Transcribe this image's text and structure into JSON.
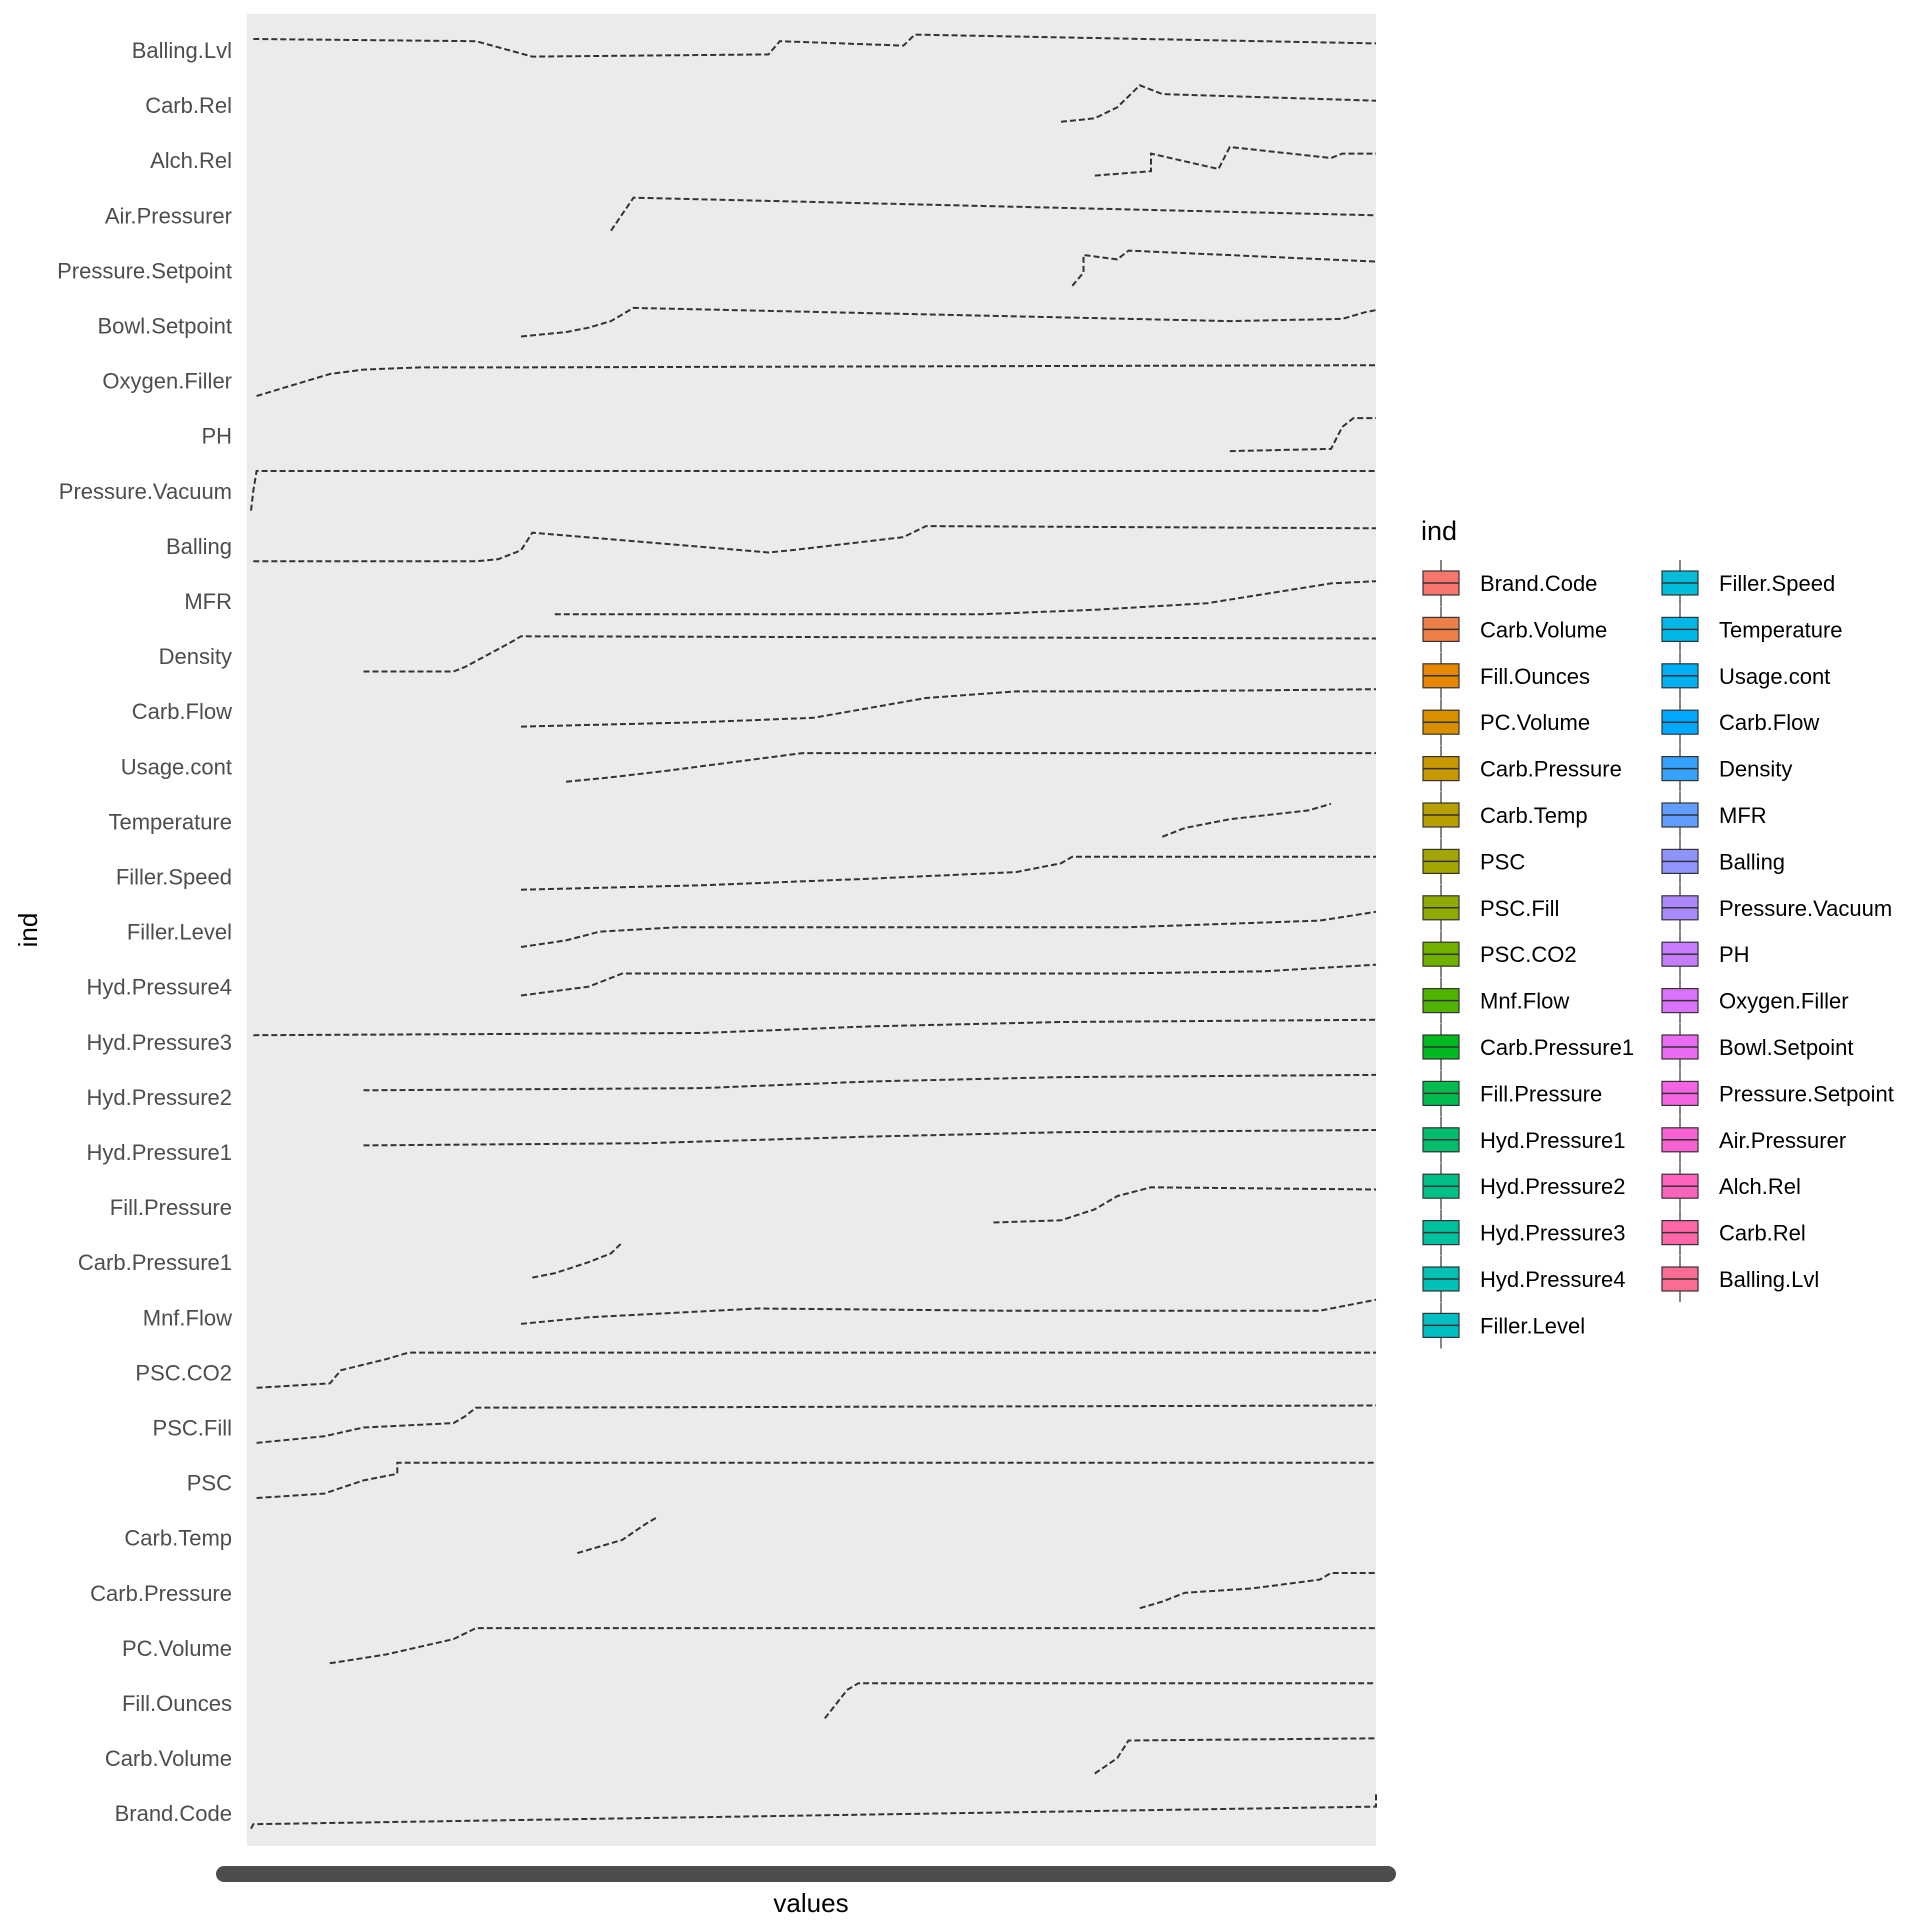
{
  "chart_data": {
    "type": "boxplot",
    "orientation": "horizontal",
    "xlabel": "values",
    "ylabel": "ind",
    "legend": {
      "title": "ind",
      "placement": "right",
      "columns": 2
    },
    "grid": false,
    "panel_background": "#ebebeb",
    "mark_color": "#333333",
    "x_tick_labels": "overplotted (illegible)",
    "categories": [
      "Brand.Code",
      "Carb.Volume",
      "Fill.Ounces",
      "PC.Volume",
      "Carb.Pressure",
      "Carb.Temp",
      "PSC",
      "PSC.Fill",
      "PSC.CO2",
      "Mnf.Flow",
      "Carb.Pressure1",
      "Fill.Pressure",
      "Hyd.Pressure1",
      "Hyd.Pressure2",
      "Hyd.Pressure3",
      "Hyd.Pressure4",
      "Filler.Level",
      "Filler.Speed",
      "Temperature",
      "Usage.cont",
      "Carb.Flow",
      "Density",
      "MFR",
      "Balling",
      "Pressure.Vacuum",
      "PH",
      "Oxygen.Filler",
      "Bowl.Setpoint",
      "Pressure.Setpoint",
      "Air.Pressurer",
      "Alch.Rel",
      "Carb.Rel",
      "Balling.Lvl"
    ],
    "colors": [
      "#F8766D",
      "#EF7F49",
      "#E58700",
      "#D89000",
      "#C99800",
      "#B79F00",
      "#A3A500",
      "#8DAB00",
      "#72B000",
      "#4EB400",
      "#00B81F",
      "#00BB4E",
      "#00BE6C",
      "#00C087",
      "#00C19F",
      "#00C1B5",
      "#00BFC4",
      "#00BCD8",
      "#00B7E9",
      "#00B0F6",
      "#00A9FF",
      "#35A2FF",
      "#619CFF",
      "#8F94FF",
      "#AC88FF",
      "#C77CFF",
      "#DB72FB",
      "#EA6AF1",
      "#F564E3",
      "#FC61D3",
      "#FF62BC",
      "#FF66A8",
      "#FC6C92"
    ],
    "point_traces": [
      {
        "name": "Balling.Lvl",
        "segs": [
          [
            0.002,
            0.25
          ],
          [
            0.2,
            0.3
          ],
          [
            0.25,
            0.65
          ],
          [
            0.46,
            0.6
          ],
          [
            0.47,
            0.3
          ],
          [
            0.58,
            0.4
          ],
          [
            0.59,
            0.15
          ],
          [
            1.0,
            0.35
          ]
        ]
      },
      {
        "name": "Carb.Rel",
        "segs": [
          [
            0.72,
            0.88
          ],
          [
            0.75,
            0.8
          ],
          [
            0.77,
            0.55
          ],
          [
            0.79,
            0.05
          ],
          [
            0.81,
            0.25
          ],
          [
            1.0,
            0.4
          ]
        ]
      },
      {
        "name": "Alch.Rel",
        "segs": [
          [
            0.75,
            0.85
          ],
          [
            0.8,
            0.75
          ],
          [
            0.8,
            0.35
          ],
          [
            0.86,
            0.7
          ],
          [
            0.87,
            0.2
          ],
          [
            0.96,
            0.45
          ],
          [
            0.97,
            0.35
          ],
          [
            1.0,
            0.35
          ]
        ]
      },
      {
        "name": "Air.Pressurer",
        "segs": [
          [
            0.32,
            0.85
          ],
          [
            0.34,
            0.1
          ],
          [
            1.0,
            0.5
          ]
        ]
      },
      {
        "name": "Pressure.Setpoint",
        "segs": [
          [
            0.73,
            0.85
          ],
          [
            0.74,
            0.55
          ],
          [
            0.74,
            0.15
          ],
          [
            0.77,
            0.25
          ],
          [
            0.78,
            0.05
          ],
          [
            1.0,
            0.3
          ]
        ]
      },
      {
        "name": "Bowl.Setpoint",
        "segs": [
          [
            0.24,
            0.75
          ],
          [
            0.26,
            0.7
          ],
          [
            0.28,
            0.65
          ],
          [
            0.3,
            0.55
          ],
          [
            0.32,
            0.4
          ],
          [
            0.34,
            0.1
          ],
          [
            0.87,
            0.4
          ],
          [
            0.97,
            0.35
          ],
          [
            0.99,
            0.2
          ],
          [
            1.0,
            0.15
          ]
        ]
      },
      {
        "name": "Oxygen.Filler",
        "segs": [
          [
            0.005,
            0.85
          ],
          [
            0.07,
            0.35
          ],
          [
            0.1,
            0.25
          ],
          [
            0.15,
            0.2
          ],
          [
            0.22,
            0.2
          ],
          [
            1.0,
            0.15
          ]
        ]
      },
      {
        "name": "PH",
        "segs": [
          [
            0.87,
            0.85
          ],
          [
            0.96,
            0.8
          ],
          [
            0.97,
            0.3
          ],
          [
            0.98,
            0.1
          ],
          [
            1.0,
            0.1
          ]
        ]
      },
      {
        "name": "Pressure.Vacuum",
        "segs": [
          [
            0.0,
            0.95
          ],
          [
            0.002,
            0.5
          ],
          [
            0.005,
            0.05
          ],
          [
            1.0,
            0.05
          ]
        ]
      },
      {
        "name": "Balling",
        "segs": [
          [
            0.002,
            0.85
          ],
          [
            0.2,
            0.85
          ],
          [
            0.22,
            0.8
          ],
          [
            0.24,
            0.6
          ],
          [
            0.25,
            0.2
          ],
          [
            0.46,
            0.65
          ],
          [
            0.48,
            0.6
          ],
          [
            0.58,
            0.3
          ],
          [
            0.6,
            0.05
          ],
          [
            1.0,
            0.1
          ]
        ]
      },
      {
        "name": "MFR",
        "segs": [
          [
            0.27,
            0.8
          ],
          [
            0.65,
            0.8
          ],
          [
            0.75,
            0.7
          ],
          [
            0.85,
            0.55
          ],
          [
            0.96,
            0.1
          ],
          [
            1.0,
            0.05
          ]
        ]
      },
      {
        "name": "Density",
        "segs": [
          [
            0.1,
            0.85
          ],
          [
            0.18,
            0.85
          ],
          [
            0.19,
            0.75
          ],
          [
            0.23,
            0.2
          ],
          [
            0.24,
            0.05
          ],
          [
            1.0,
            0.1
          ]
        ]
      },
      {
        "name": "Carb.Flow",
        "segs": [
          [
            0.24,
            0.85
          ],
          [
            0.4,
            0.75
          ],
          [
            0.5,
            0.65
          ],
          [
            0.6,
            0.2
          ],
          [
            0.68,
            0.05
          ],
          [
            0.8,
            0.05
          ],
          [
            1.0,
            0.0
          ]
        ]
      },
      {
        "name": "Usage.cont",
        "segs": [
          [
            0.28,
            0.85
          ],
          [
            0.32,
            0.75
          ],
          [
            0.37,
            0.6
          ],
          [
            0.43,
            0.4
          ],
          [
            0.49,
            0.2
          ],
          [
            1.0,
            0.2
          ]
        ]
      },
      {
        "name": "Temperature",
        "segs": [
          [
            0.81,
            0.85
          ],
          [
            0.83,
            0.65
          ],
          [
            0.87,
            0.45
          ],
          [
            0.94,
            0.25
          ],
          [
            0.96,
            0.1
          ]
        ]
      },
      {
        "name": "Filler.Speed",
        "segs": [
          [
            0.24,
            0.8
          ],
          [
            0.4,
            0.7
          ],
          [
            0.55,
            0.55
          ],
          [
            0.68,
            0.4
          ],
          [
            0.72,
            0.2
          ],
          [
            0.73,
            0.05
          ],
          [
            1.0,
            0.05
          ]
        ]
      },
      {
        "name": "Filler.Level",
        "segs": [
          [
            0.24,
            0.85
          ],
          [
            0.28,
            0.7
          ],
          [
            0.31,
            0.5
          ],
          [
            0.38,
            0.4
          ],
          [
            0.78,
            0.4
          ],
          [
            0.95,
            0.25
          ],
          [
            1.0,
            0.05
          ]
        ]
      },
      {
        "name": "Hyd.Pressure4",
        "segs": [
          [
            0.24,
            0.7
          ],
          [
            0.3,
            0.5
          ],
          [
            0.33,
            0.2
          ],
          [
            0.77,
            0.2
          ],
          [
            0.9,
            0.15
          ],
          [
            1.0,
            0.0
          ]
        ]
      },
      {
        "name": "Hyd.Pressure3",
        "segs": [
          [
            0.002,
            0.35
          ],
          [
            0.4,
            0.3
          ],
          [
            0.55,
            0.15
          ],
          [
            0.72,
            0.05
          ],
          [
            1.0,
            0.0
          ]
        ]
      },
      {
        "name": "Hyd.Pressure2",
        "segs": [
          [
            0.1,
            0.35
          ],
          [
            0.4,
            0.3
          ],
          [
            0.55,
            0.15
          ],
          [
            0.72,
            0.05
          ],
          [
            1.0,
            0.0
          ]
        ]
      },
      {
        "name": "Hyd.Pressure1",
        "segs": [
          [
            0.1,
            0.35
          ],
          [
            0.35,
            0.3
          ],
          [
            0.55,
            0.15
          ],
          [
            0.72,
            0.05
          ],
          [
            1.0,
            0.0
          ]
        ]
      },
      {
        "name": "Fill.Pressure",
        "segs": [
          [
            0.66,
            0.85
          ],
          [
            0.72,
            0.8
          ],
          [
            0.75,
            0.55
          ],
          [
            0.77,
            0.25
          ],
          [
            0.8,
            0.05
          ],
          [
            1.0,
            0.1
          ]
        ]
      },
      {
        "name": "Carb.Pressure1",
        "segs": [
          [
            0.25,
            0.85
          ],
          [
            0.27,
            0.75
          ],
          [
            0.3,
            0.5
          ],
          [
            0.32,
            0.3
          ],
          [
            0.33,
            0.05
          ]
        ]
      },
      {
        "name": "Mnf.Flow",
        "segs": [
          [
            0.24,
            0.65
          ],
          [
            0.3,
            0.5
          ],
          [
            0.45,
            0.3
          ],
          [
            0.67,
            0.35
          ],
          [
            0.95,
            0.35
          ],
          [
            1.0,
            0.1
          ]
        ]
      },
      {
        "name": "PSC.CO2",
        "segs": [
          [
            0.005,
            0.85
          ],
          [
            0.07,
            0.75
          ],
          [
            0.08,
            0.45
          ],
          [
            0.12,
            0.2
          ],
          [
            0.14,
            0.05
          ],
          [
            1.0,
            0.05
          ]
        ]
      },
      {
        "name": "PSC.Fill",
        "segs": [
          [
            0.005,
            0.85
          ],
          [
            0.065,
            0.7
          ],
          [
            0.1,
            0.5
          ],
          [
            0.18,
            0.4
          ],
          [
            0.19,
            0.25
          ],
          [
            0.2,
            0.05
          ],
          [
            1.0,
            0.0
          ]
        ]
      },
      {
        "name": "PSC",
        "segs": [
          [
            0.005,
            0.85
          ],
          [
            0.065,
            0.75
          ],
          [
            0.1,
            0.45
          ],
          [
            0.13,
            0.3
          ],
          [
            0.13,
            0.05
          ],
          [
            1.0,
            0.05
          ]
        ]
      },
      {
        "name": "Carb.Temp",
        "segs": [
          [
            0.29,
            0.85
          ],
          [
            0.31,
            0.7
          ],
          [
            0.33,
            0.55
          ],
          [
            0.35,
            0.2
          ],
          [
            0.36,
            0.05
          ]
        ]
      },
      {
        "name": "Carb.Pressure",
        "segs": [
          [
            0.79,
            0.85
          ],
          [
            0.81,
            0.7
          ],
          [
            0.83,
            0.5
          ],
          [
            0.89,
            0.4
          ],
          [
            0.95,
            0.2
          ],
          [
            0.96,
            0.05
          ],
          [
            1.0,
            0.05
          ]
        ]
      },
      {
        "name": "PC.Volume",
        "segs": [
          [
            0.07,
            0.85
          ],
          [
            0.12,
            0.65
          ],
          [
            0.18,
            0.3
          ],
          [
            0.2,
            0.05
          ],
          [
            1.0,
            0.05
          ]
        ]
      },
      {
        "name": "Fill.Ounces",
        "segs": [
          [
            0.51,
            0.85
          ],
          [
            0.53,
            0.2
          ],
          [
            0.54,
            0.05
          ],
          [
            1.0,
            0.05
          ]
        ]
      },
      {
        "name": "Carb.Volume",
        "segs": [
          [
            0.75,
            0.85
          ],
          [
            0.77,
            0.5
          ],
          [
            0.78,
            0.1
          ],
          [
            1.0,
            0.05
          ]
        ]
      },
      {
        "name": "Brand.Code",
        "segs": [
          [
            0.0,
            0.85
          ],
          [
            0.002,
            0.75
          ],
          [
            1.0,
            0.35
          ],
          [
            1.0,
            0.05
          ]
        ]
      }
    ]
  }
}
